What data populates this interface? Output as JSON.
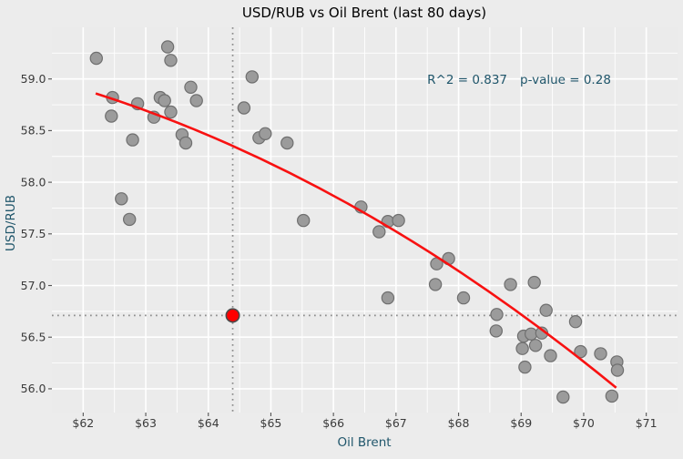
{
  "chart_data": {
    "type": "scatter",
    "title": "USD/RUB vs Oil Brent (last 80 days)",
    "xlabel": "Oil Brent",
    "ylabel": "USD/RUB",
    "xlim": [
      61.5,
      71.5
    ],
    "ylim": [
      55.77,
      59.5
    ],
    "x_ticks": [
      62,
      63,
      64,
      65,
      66,
      67,
      68,
      69,
      70,
      71
    ],
    "x_tick_labels": [
      "$62",
      "$63",
      "$64",
      "$65",
      "$66",
      "$67",
      "$68",
      "$69",
      "$70",
      "$71"
    ],
    "y_ticks": [
      56.0,
      56.5,
      57.0,
      57.5,
      58.0,
      58.5,
      59.0
    ],
    "y_tick_labels": [
      "56.0",
      "56.5",
      "57.0",
      "57.5",
      "58.0",
      "58.5",
      "59.0"
    ],
    "grid": "major and minor white gridlines on gray panel",
    "legend": "none",
    "annotation": {
      "r_squared_label": "R^2 = 0.837",
      "p_value_label": "p-value = 0.28"
    },
    "points": [
      [
        62.21,
        59.2
      ],
      [
        63.35,
        59.31
      ],
      [
        63.4,
        59.18
      ],
      [
        64.7,
        59.02
      ],
      [
        62.47,
        58.82
      ],
      [
        62.87,
        58.76
      ],
      [
        63.23,
        58.82
      ],
      [
        63.3,
        58.79
      ],
      [
        63.72,
        58.92
      ],
      [
        63.81,
        58.79
      ],
      [
        63.4,
        58.68
      ],
      [
        63.13,
        58.63
      ],
      [
        62.45,
        58.64
      ],
      [
        64.57,
        58.72
      ],
      [
        62.79,
        58.41
      ],
      [
        63.58,
        58.46
      ],
      [
        63.64,
        58.38
      ],
      [
        64.81,
        58.43
      ],
      [
        64.91,
        58.47
      ],
      [
        65.26,
        58.38
      ],
      [
        62.61,
        57.84
      ],
      [
        62.74,
        57.64
      ],
      [
        66.44,
        57.76
      ],
      [
        65.52,
        57.63
      ],
      [
        66.87,
        57.62
      ],
      [
        67.04,
        57.63
      ],
      [
        66.73,
        57.52
      ],
      [
        67.65,
        57.21
      ],
      [
        67.84,
        57.26
      ],
      [
        67.63,
        57.01
      ],
      [
        66.87,
        56.88
      ],
      [
        68.08,
        56.88
      ],
      [
        68.83,
        57.01
      ],
      [
        69.21,
        57.03
      ],
      [
        68.61,
        56.72
      ],
      [
        69.4,
        56.76
      ],
      [
        69.87,
        56.65
      ],
      [
        68.6,
        56.56
      ],
      [
        69.04,
        56.51
      ],
      [
        69.16,
        56.53
      ],
      [
        69.33,
        56.54
      ],
      [
        69.23,
        56.42
      ],
      [
        69.02,
        56.39
      ],
      [
        69.47,
        56.32
      ],
      [
        69.95,
        56.36
      ],
      [
        70.27,
        56.34
      ],
      [
        69.06,
        56.21
      ],
      [
        70.53,
        56.26
      ],
      [
        70.54,
        56.18
      ],
      [
        69.67,
        55.92
      ],
      [
        70.45,
        55.93
      ]
    ],
    "trend_line": {
      "shape": "quadratic",
      "start": [
        62.2,
        58.86
      ],
      "control": [
        66.43,
        58.04
      ],
      "end": [
        70.52,
        56.01
      ]
    },
    "highlight_point": {
      "x": 64.39,
      "y": 56.71
    },
    "crosshair": {
      "x": 64.39,
      "y": 56.71,
      "style": "dotted"
    },
    "colors": {
      "figure_bg": "#ececec",
      "panel_bg": "#ebebeb",
      "grid": "#ffffff",
      "point_fill": "#9b9b9b",
      "point_edge": "#6f6f6f",
      "trend": "#f81111",
      "highlight_fill": "#ff0000",
      "highlight_edge": "#4a4a4a",
      "crosshair": "#8c8c8c",
      "axis_title": "#20566b",
      "annotation": "#20566b",
      "tick_label": "#3a3a3a",
      "tick_mark": "#555555",
      "title": "#000000"
    }
  }
}
